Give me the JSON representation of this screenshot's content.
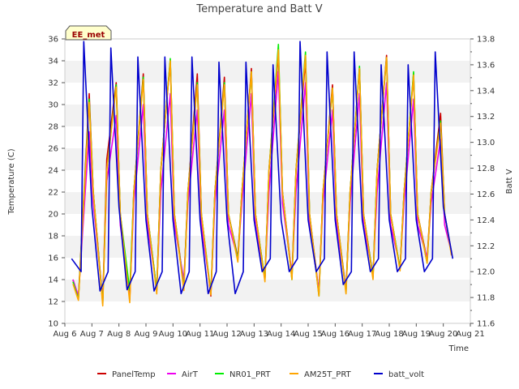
{
  "chart_data": {
    "type": "line",
    "title": "Temperature and Batt V",
    "xlabel": "Time",
    "ylabel": "Temperature (C)",
    "y2label": "Batt V",
    "site_label": "EE_met",
    "x_ticks": [
      "Aug 6",
      "Aug 7",
      "Aug 8",
      "Aug 9",
      "Aug 10",
      "Aug 11",
      "Aug 12",
      "Aug 13",
      "Aug 14",
      "Aug 15",
      "Aug 16",
      "Aug 17",
      "Aug 18",
      "Aug 19",
      "Aug 20",
      "Aug 21"
    ],
    "y_ticks": [
      10,
      12,
      14,
      16,
      18,
      20,
      22,
      24,
      26,
      28,
      30,
      32,
      34,
      36
    ],
    "y2_ticks": [
      "11.6",
      "11.8",
      "12.0",
      "12.2",
      "12.4",
      "12.6",
      "12.8",
      "13.0",
      "13.2",
      "13.4",
      "13.6",
      "13.8"
    ],
    "xlim": [
      6,
      21
    ],
    "ylim": [
      10,
      36
    ],
    "y2lim": [
      11.6,
      13.8
    ],
    "grid": "horizontal bands",
    "legend_position": "bottom",
    "series": [
      {
        "name": "PanelTemp",
        "color": "#cc0000",
        "axis": "left",
        "x": [
          6.3,
          6.5,
          6.9,
          7.05,
          7.4,
          7.55,
          7.9,
          8.05,
          8.4,
          8.55,
          8.9,
          9.05,
          9.4,
          9.55,
          9.9,
          10.05,
          10.4,
          10.55,
          10.9,
          11.05,
          11.4,
          11.55,
          11.9,
          12.05,
          12.4,
          12.55,
          12.9,
          13.05,
          13.4,
          13.55,
          13.9,
          14.05,
          14.4,
          14.55,
          14.9,
          15.05,
          15.4,
          15.55,
          15.9,
          16.05,
          16.4,
          16.55,
          16.9,
          17.05,
          17.4,
          17.55,
          17.9,
          18.05,
          18.4,
          18.55,
          18.9,
          19.05,
          19.4,
          19.55,
          19.9,
          20.05,
          20.3
        ],
        "y": [
          14.0,
          12.3,
          31.0,
          22.0,
          12.0,
          25.0,
          32.0,
          20.0,
          12.2,
          22.0,
          32.8,
          20.0,
          13.0,
          24.0,
          34.0,
          20.0,
          13.5,
          22.0,
          32.8,
          20.0,
          12.5,
          22.0,
          32.5,
          20.0,
          16.0,
          22.0,
          33.3,
          20.0,
          14.0,
          24.0,
          34.6,
          22.0,
          14.3,
          24.0,
          34.0,
          20.0,
          12.8,
          22.0,
          31.8,
          20.0,
          13.0,
          22.0,
          33.3,
          20.0,
          14.3,
          24.0,
          34.5,
          20.0,
          15.0,
          22.0,
          32.8,
          20.0,
          15.8,
          22.0,
          29.2,
          20.0,
          16.5
        ]
      },
      {
        "name": "AirT",
        "color": "#ee00ee",
        "axis": "left",
        "x": [
          6.3,
          6.5,
          6.9,
          7.05,
          7.4,
          7.55,
          7.9,
          8.05,
          8.4,
          8.55,
          8.9,
          9.05,
          9.4,
          9.55,
          9.9,
          10.05,
          10.4,
          10.55,
          10.9,
          11.05,
          11.4,
          11.55,
          11.9,
          12.05,
          12.4,
          12.55,
          12.9,
          13.05,
          13.4,
          13.55,
          13.9,
          14.05,
          14.4,
          14.55,
          14.9,
          15.05,
          15.4,
          15.55,
          15.9,
          16.05,
          16.4,
          16.55,
          16.9,
          17.05,
          17.4,
          17.55,
          17.9,
          18.05,
          18.4,
          18.55,
          18.9,
          19.05,
          19.4,
          19.55,
          19.9,
          20.05,
          20.3
        ],
        "y": [
          14.0,
          12.5,
          27.5,
          21.0,
          12.2,
          23.0,
          29.0,
          19.0,
          12.5,
          21.0,
          30.0,
          19.0,
          13.2,
          22.0,
          31.0,
          19.0,
          14.0,
          21.0,
          29.5,
          19.0,
          12.8,
          21.0,
          29.5,
          19.0,
          16.0,
          21.0,
          31.0,
          19.0,
          14.2,
          22.0,
          33.0,
          21.0,
          14.5,
          22.0,
          32.0,
          19.0,
          13.0,
          21.0,
          29.5,
          19.0,
          13.2,
          21.0,
          31.0,
          19.0,
          14.5,
          22.0,
          32.0,
          19.0,
          15.2,
          21.0,
          30.5,
          19.0,
          16.0,
          21.0,
          26.8,
          19.0,
          16.5
        ]
      },
      {
        "name": "NR01_PRT",
        "color": "#00ee00",
        "axis": "left",
        "x": [
          6.3,
          6.5,
          6.9,
          7.05,
          7.4,
          7.55,
          7.9,
          8.05,
          8.4,
          8.55,
          8.9,
          9.05,
          9.4,
          9.55,
          9.9,
          10.05,
          10.4,
          10.55,
          10.9,
          11.05,
          11.4,
          11.55,
          11.9,
          12.05,
          12.4,
          12.55,
          12.9,
          13.05,
          13.4,
          13.55,
          13.9,
          14.05,
          14.4,
          14.55,
          14.9,
          15.05,
          15.4,
          15.55,
          15.9,
          16.05,
          16.4,
          16.55,
          16.9,
          17.05,
          17.4,
          17.55,
          17.9,
          18.05,
          18.4,
          18.55,
          18.9,
          19.05,
          19.4,
          19.55,
          19.9,
          20.05,
          20.3
        ],
        "y": [
          13.8,
          12.2,
          30.5,
          22.0,
          11.8,
          24.0,
          31.8,
          20.0,
          13.0,
          22.0,
          32.5,
          20.0,
          13.0,
          24.0,
          34.2,
          20.0,
          13.2,
          22.0,
          32.0,
          20.0,
          12.8,
          22.0,
          32.0,
          20.0,
          15.8,
          22.0,
          33.0,
          20.0,
          14.0,
          24.0,
          35.5,
          22.0,
          14.0,
          24.0,
          34.8,
          20.0,
          12.5,
          22.0,
          31.5,
          20.0,
          12.8,
          22.0,
          33.5,
          20.0,
          14.2,
          24.0,
          34.3,
          20.0,
          15.0,
          22.0,
          33.0,
          20.0,
          15.5,
          22.0,
          28.5,
          20.0,
          16.3
        ]
      },
      {
        "name": "AM25T_PRT",
        "color": "#ffa500",
        "axis": "left",
        "x": [
          6.3,
          6.5,
          6.9,
          7.05,
          7.4,
          7.55,
          7.9,
          8.05,
          8.4,
          8.55,
          8.9,
          9.05,
          9.4,
          9.55,
          9.9,
          10.05,
          10.4,
          10.55,
          10.9,
          11.05,
          11.4,
          11.55,
          11.9,
          12.05,
          12.4,
          12.55,
          12.9,
          13.05,
          13.4,
          13.55,
          13.9,
          14.05,
          14.4,
          14.55,
          14.9,
          15.05,
          15.4,
          15.55,
          15.9,
          16.05,
          16.4,
          16.55,
          16.9,
          17.05,
          17.4,
          17.55,
          17.9,
          18.05,
          18.4,
          18.55,
          18.9,
          19.05,
          19.4,
          19.55,
          19.9,
          20.05,
          20.3
        ],
        "y": [
          13.6,
          12.1,
          30.2,
          22.0,
          11.6,
          24.0,
          31.6,
          20.0,
          11.9,
          22.0,
          32.3,
          20.0,
          12.7,
          24.0,
          34.0,
          20.0,
          13.0,
          22.0,
          31.8,
          20.0,
          12.6,
          22.0,
          31.8,
          20.0,
          15.6,
          22.0,
          33.0,
          20.0,
          13.8,
          24.0,
          35.0,
          22.0,
          14.0,
          24.0,
          34.5,
          20.0,
          12.5,
          22.0,
          31.5,
          20.0,
          12.7,
          22.0,
          33.3,
          20.0,
          14.0,
          24.0,
          34.3,
          20.0,
          14.8,
          22.0,
          32.7,
          20.0,
          15.5,
          22.0,
          28.3,
          20.0,
          16.2
        ]
      },
      {
        "name": "batt_volt",
        "color": "#0000cc",
        "axis": "right",
        "x": [
          6.25,
          6.6,
          6.7,
          7.0,
          7.3,
          7.6,
          7.7,
          8.0,
          8.3,
          8.6,
          8.7,
          9.0,
          9.3,
          9.6,
          9.7,
          10.0,
          10.3,
          10.6,
          10.7,
          11.0,
          11.3,
          11.6,
          11.7,
          12.0,
          12.3,
          12.6,
          12.7,
          13.0,
          13.3,
          13.6,
          13.7,
          14.0,
          14.3,
          14.6,
          14.7,
          15.0,
          15.3,
          15.6,
          15.7,
          16.0,
          16.3,
          16.6,
          16.7,
          17.0,
          17.3,
          17.6,
          17.7,
          18.0,
          18.3,
          18.6,
          18.7,
          19.0,
          19.3,
          19.6,
          19.7,
          20.0,
          20.35
        ],
        "y": [
          12.1,
          12.0,
          13.78,
          12.5,
          11.85,
          12.0,
          13.73,
          12.5,
          11.86,
          12.0,
          13.66,
          12.4,
          11.85,
          12.0,
          13.66,
          12.4,
          11.83,
          12.0,
          13.66,
          12.4,
          11.83,
          12.0,
          13.62,
          12.4,
          11.83,
          12.0,
          13.62,
          12.4,
          12.0,
          12.1,
          13.6,
          12.4,
          12.0,
          12.1,
          13.78,
          12.4,
          12.0,
          12.1,
          13.7,
          12.4,
          11.9,
          12.0,
          13.7,
          12.4,
          12.0,
          12.1,
          13.6,
          12.4,
          12.0,
          12.1,
          13.6,
          12.4,
          12.0,
          12.1,
          13.7,
          12.5,
          12.1
        ]
      }
    ]
  }
}
